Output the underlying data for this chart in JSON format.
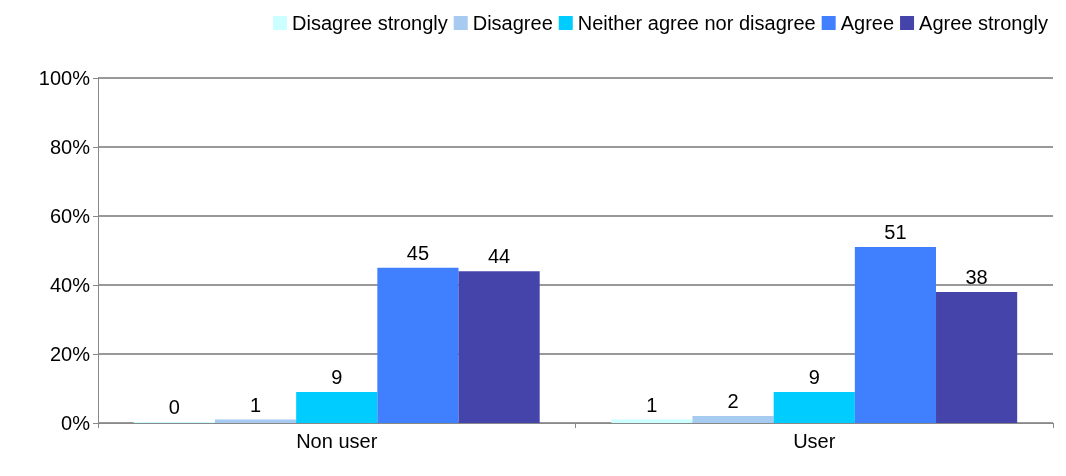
{
  "chart_data": {
    "type": "bar",
    "categories": [
      "Non user",
      "User"
    ],
    "series": [
      {
        "name": "Disagree strongly",
        "color": "#ccffff",
        "values": [
          0,
          1
        ]
      },
      {
        "name": "Disagree",
        "color": "#a6caf0",
        "values": [
          1,
          2
        ]
      },
      {
        "name": "Neither agree nor disagree",
        "color": "#00ccff",
        "values": [
          9,
          9
        ]
      },
      {
        "name": "Agree",
        "color": "#4080ff",
        "values": [
          45,
          51
        ]
      },
      {
        "name": "Agree strongly",
        "color": "#4444aa",
        "values": [
          44,
          38
        ]
      }
    ],
    "ylim": [
      0,
      100
    ],
    "yticks": [
      {
        "value": 0,
        "label": "0%"
      },
      {
        "value": 20,
        "label": "20%"
      },
      {
        "value": 40,
        "label": "40%"
      },
      {
        "value": 60,
        "label": "60%"
      },
      {
        "value": 80,
        "label": "80%"
      },
      {
        "value": 100,
        "label": "100%"
      }
    ],
    "grid": "y",
    "legend": "top",
    "data_labels": true
  }
}
